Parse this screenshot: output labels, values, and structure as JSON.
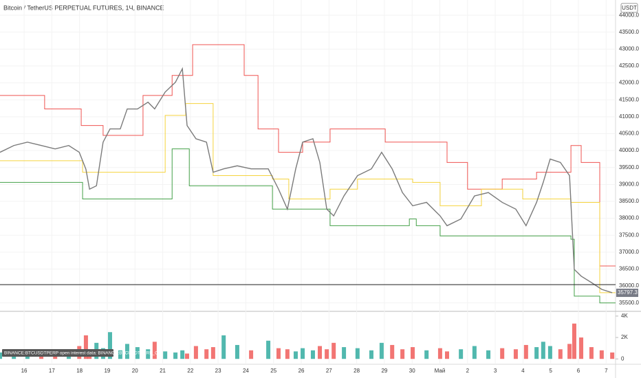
{
  "chart_data": {
    "type": "line",
    "title": "Bitcoin / TetherUS PERPETUAL FUTURES, 1Ч, BINANCE",
    "currency": "USDT",
    "grid": true,
    "xlim": [
      -0.87,
      21.34
    ],
    "ylim": [
      35250,
      44450
    ],
    "xticks": [
      {
        "value": 0,
        "label": "16"
      },
      {
        "value": 1,
        "label": "17"
      },
      {
        "value": 2,
        "label": "18"
      },
      {
        "value": 3,
        "label": "19"
      },
      {
        "value": 4,
        "label": "20"
      },
      {
        "value": 5,
        "label": "21"
      },
      {
        "value": 6,
        "label": "22"
      },
      {
        "value": 7,
        "label": "23"
      },
      {
        "value": 8,
        "label": "24"
      },
      {
        "value": 9,
        "label": "25"
      },
      {
        "value": 10,
        "label": "26"
      },
      {
        "value": 11,
        "label": "27"
      },
      {
        "value": 12,
        "label": "28"
      },
      {
        "value": 13,
        "label": "29"
      },
      {
        "value": 14,
        "label": "30"
      },
      {
        "value": 15,
        "label": "Май"
      },
      {
        "value": 16,
        "label": "2"
      },
      {
        "value": 17,
        "label": "3"
      },
      {
        "value": 18,
        "label": "4"
      },
      {
        "value": 19,
        "label": "5"
      },
      {
        "value": 20,
        "label": "6"
      },
      {
        "value": 21,
        "label": "7"
      }
    ],
    "yticks": [
      {
        "value": 35500,
        "label": "35500.0"
      },
      {
        "value": 36000,
        "label": "36000.0"
      },
      {
        "value": 36500,
        "label": "36500.0"
      },
      {
        "value": 37000,
        "label": "37000.0"
      },
      {
        "value": 37500,
        "label": "37500.0"
      },
      {
        "value": 38000,
        "label": "38000.0"
      },
      {
        "value": 38500,
        "label": "38500.0"
      },
      {
        "value": 39000,
        "label": "39000.0"
      },
      {
        "value": 39500,
        "label": "39500.0"
      },
      {
        "value": 40000,
        "label": "40000.0"
      },
      {
        "value": 40500,
        "label": "40500.0"
      },
      {
        "value": 41000,
        "label": "41000.0"
      },
      {
        "value": 41500,
        "label": "41500.0"
      },
      {
        "value": 42000,
        "label": "42000.0"
      },
      {
        "value": 42500,
        "label": "42500.0"
      },
      {
        "value": 43000,
        "label": "43000.0"
      },
      {
        "value": 43500,
        "label": "43500.0"
      },
      {
        "value": 44000,
        "label": "44000.0"
      }
    ],
    "hline": {
      "value": 36040,
      "color": "#222222"
    },
    "last_price": {
      "value": 35797.3,
      "color": "#787b86"
    },
    "series": [
      {
        "color": "#7a7a7a",
        "step": false,
        "x": [
          -0.87,
          -0.37,
          0.12,
          0.62,
          1.12,
          1.61,
          1.99,
          2.23,
          2.36,
          2.61,
          2.85,
          3.1,
          3.47,
          3.72,
          4.09,
          4.47,
          4.71,
          5.09,
          5.46,
          5.71,
          5.88,
          6.2,
          6.58,
          6.82,
          7.2,
          7.69,
          8.19,
          8.81,
          9.18,
          9.5,
          9.8,
          10.05,
          10.42,
          10.67,
          10.92,
          11.17,
          11.54,
          12.03,
          12.53,
          12.9,
          13.28,
          13.65,
          14.02,
          14.52,
          15.01,
          15.26,
          15.76,
          16.25,
          16.75,
          17.25,
          17.74,
          18.11,
          18.49,
          18.73,
          18.98,
          19.35,
          19.68,
          19.85,
          20.1,
          20.47,
          20.84,
          21.22
        ],
        "values": [
          39950,
          40150,
          40250,
          40150,
          40050,
          40150,
          39950,
          39450,
          38860,
          38960,
          40250,
          40640,
          40640,
          41230,
          41230,
          41430,
          41230,
          41730,
          42020,
          42420,
          40740,
          40350,
          40250,
          39360,
          39460,
          39550,
          39460,
          39460,
          38860,
          38270,
          39460,
          40250,
          40350,
          39650,
          38270,
          38070,
          38660,
          39260,
          39460,
          39950,
          39460,
          38760,
          38370,
          38470,
          38070,
          37780,
          37980,
          38660,
          38760,
          38470,
          38270,
          37780,
          38470,
          39060,
          39750,
          39650,
          39260,
          36490,
          36290,
          36100,
          35900,
          35800
        ]
      },
      {
        "color": "#ef5350",
        "step": true,
        "x": [
          -0.87,
          0.74,
          2.06,
          2.85,
          4.29,
          5.34,
          6.08,
          7.94,
          8.44,
          9.18,
          10.05,
          11.04,
          13.03,
          15.26,
          16.0,
          17.25,
          18.49,
          19.73,
          20.1,
          20.77,
          21.34
        ],
        "values": [
          41630,
          41230,
          40740,
          40450,
          41630,
          42220,
          43130,
          42220,
          40640,
          39950,
          40250,
          40640,
          40250,
          39650,
          38860,
          39160,
          39360,
          40150,
          39650,
          36590,
          36590
        ]
      },
      {
        "color": "#f5d33d",
        "step": true,
        "x": [
          -0.87,
          2.11,
          5.09,
          5.83,
          6.82,
          8.96,
          9.55,
          11.04,
          12.03,
          14.02,
          15.01,
          16.5,
          17.99,
          19.73,
          20.77,
          21.34
        ],
        "values": [
          39700,
          39360,
          41040,
          41390,
          39260,
          39160,
          38570,
          38860,
          39160,
          39060,
          38370,
          38860,
          38570,
          38470,
          35800,
          35800
        ]
      },
      {
        "color": "#43a047",
        "step": true,
        "x": [
          -0.87,
          2.11,
          5.34,
          5.96,
          8.96,
          11.04,
          13.9,
          14.15,
          15.01,
          19.73,
          19.85,
          20.77,
          21.34
        ],
        "values": [
          39060,
          38570,
          40050,
          38960,
          38270,
          37780,
          37980,
          37780,
          37480,
          37380,
          35700,
          35500,
          35500
        ]
      }
    ],
    "oi_pane": {
      "label": "BINANCE:BTCUSDTPERP open interest data: BINANCE:BTCUSDTPERP_OI",
      "ylim": [
        -500,
        4250
      ],
      "yticks": [
        0,
        {
          "value": 2000,
          "label": "2K"
        },
        {
          "value": 4000,
          "label": "4K"
        }
      ],
      "up_color": "#26a69a",
      "down_color": "#ef5350",
      "values": [
        600,
        400,
        800,
        500,
        900,
        700,
        1200,
        2200,
        900,
        1500,
        1000,
        2500,
        800,
        1400,
        1100,
        900,
        1600,
        700,
        600,
        800,
        500,
        1200,
        900,
        1100,
        2200,
        1300,
        800,
        1700,
        1000,
        900,
        700,
        1000,
        800,
        1200,
        900,
        1500,
        1100,
        1000,
        800,
        1500,
        1300,
        900,
        1100,
        800,
        1000,
        700,
        900,
        1200,
        800,
        1000,
        900,
        1300,
        1100,
        1600,
        1200,
        900,
        1400,
        3300,
        2000,
        1100,
        800,
        600
      ]
    }
  }
}
